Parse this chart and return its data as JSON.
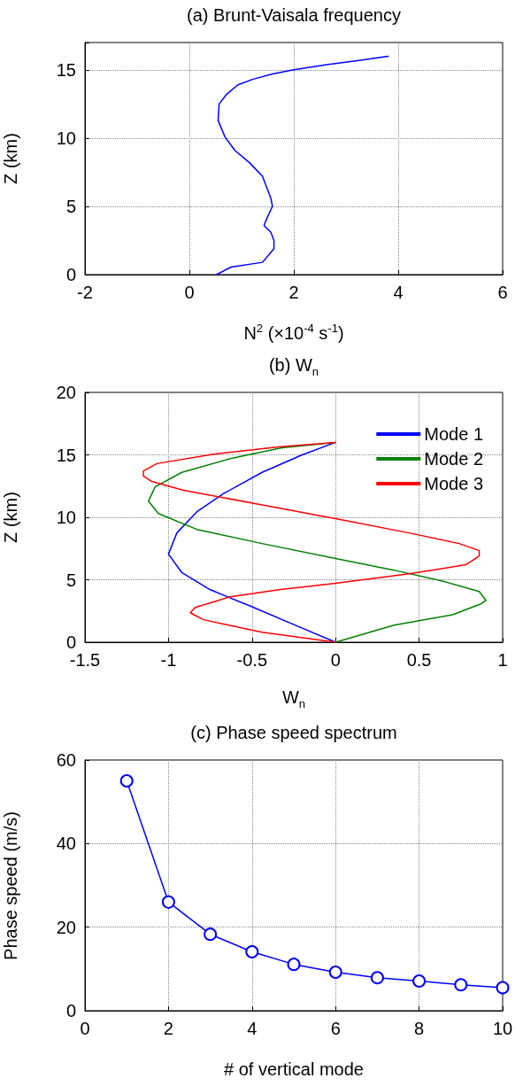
{
  "chart_data": [
    {
      "type": "line",
      "title": "(a) Brunt-Vaisala frequency",
      "xlabel": "N$^{2}$ (×10$^{-4}$ s$^{-1}$)",
      "ylabel": "Z (km)",
      "xlim": [
        -2,
        6
      ],
      "ylim": [
        0,
        17
      ],
      "xticks": [
        -2,
        0,
        2,
        4,
        6
      ],
      "yticks": [
        0,
        5,
        10,
        15
      ],
      "grid": true,
      "series": [
        {
          "color": "#0000ff",
          "x": [
            0.52,
            0.8,
            1.4,
            1.62,
            1.62,
            1.56,
            1.43,
            1.47,
            1.59,
            1.56,
            1.4,
            1.15,
            0.87,
            0.68,
            0.55,
            0.57,
            0.71,
            0.93,
            1.21,
            1.59,
            2.0,
            2.66,
            3.28,
            3.81
          ],
          "values": [
            0,
            0.55,
            0.9,
            1.9,
            2.5,
            3.1,
            3.6,
            4.0,
            5.0,
            5.6,
            7.2,
            8.2,
            9.1,
            10.1,
            11.3,
            12.5,
            13.2,
            13.9,
            14.3,
            14.7,
            15.0,
            15.4,
            15.7,
            16.0
          ]
        }
      ]
    },
    {
      "type": "line",
      "title": "(b) W$_{n}$",
      "xlabel": "W$_{n}$",
      "ylabel": "Z (km)",
      "xlim": [
        -1.5,
        1
      ],
      "ylim": [
        0,
        20
      ],
      "xticks": [
        -1.5,
        -1,
        -0.5,
        0,
        0.5,
        1
      ],
      "yticks": [
        0,
        5,
        10,
        15,
        20
      ],
      "grid": true,
      "legend": "top right",
      "series": [
        {
          "name": "Mode 1",
          "color": "#0000ff",
          "x": [
            0,
            -0.24,
            -0.5,
            -0.75,
            -0.92,
            -1.0,
            -0.95,
            -0.83,
            -0.67,
            -0.44,
            -0.2,
            0
          ],
          "values": [
            0,
            1.36,
            2.84,
            4.2,
            5.57,
            7.05,
            8.75,
            10.45,
            11.9,
            13.6,
            15.0,
            16
          ]
        },
        {
          "name": "Mode 2",
          "color": "#008000",
          "x": [
            0,
            0.35,
            0.7,
            0.87,
            0.9,
            0.86,
            0.64,
            0.35,
            0,
            -0.44,
            -0.83,
            -1.06,
            -1.12,
            -1.08,
            -0.92,
            -0.63,
            -0.32,
            0
          ],
          "values": [
            0,
            1.36,
            2.2,
            3.07,
            3.35,
            4.06,
            4.9,
            5.77,
            6.7,
            7.9,
            9.03,
            10.3,
            11.3,
            12.44,
            13.6,
            14.7,
            15.57,
            16
          ]
        },
        {
          "name": "Mode 3",
          "color": "#ff0000",
          "x": [
            0,
            -0.44,
            -0.79,
            -0.87,
            -0.84,
            -0.63,
            -0.34,
            0,
            0.44,
            0.78,
            0.86,
            0.86,
            0.74,
            0.44,
            0,
            -0.44,
            -0.91,
            -1.1,
            -1.15,
            -1.15,
            -1.07,
            -0.73,
            -0.34,
            0
          ],
          "values": [
            0,
            0.8,
            1.8,
            2.36,
            2.78,
            3.64,
            4.2,
            4.72,
            5.48,
            6.2,
            6.9,
            7.33,
            7.9,
            8.75,
            9.9,
            11.0,
            12.16,
            12.87,
            13.3,
            13.72,
            14.3,
            15.06,
            15.63,
            16
          ]
        }
      ]
    },
    {
      "type": "line",
      "title": "(c) Phase speed spectrum",
      "xlabel": "# of vertical mode",
      "ylabel": "Phase speed (m/s)",
      "xlim": [
        0,
        10
      ],
      "ylim": [
        0,
        60
      ],
      "xticks": [
        0,
        2,
        4,
        6,
        8,
        10
      ],
      "yticks": [
        0,
        20,
        40,
        60
      ],
      "grid": true,
      "marker": "circle",
      "series": [
        {
          "color": "#0000ff",
          "x": [
            1,
            2,
            3,
            4,
            5,
            6,
            7,
            8,
            9,
            10
          ],
          "values": [
            55,
            26,
            18.3,
            14.1,
            11.1,
            9.2,
            7.9,
            7.1,
            6.2,
            5.5
          ]
        }
      ]
    }
  ]
}
